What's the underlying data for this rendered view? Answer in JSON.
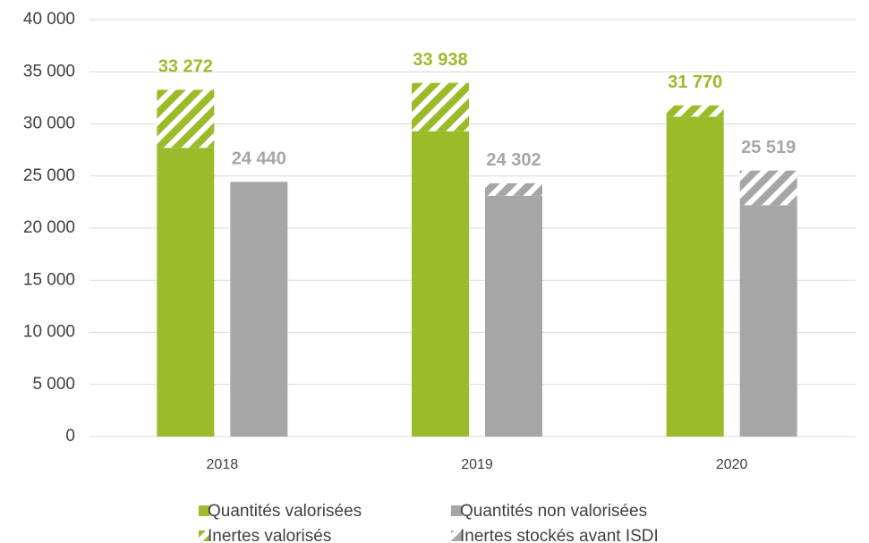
{
  "chart_data": {
    "type": "stacked_grouped_bar",
    "categories": [
      "2018",
      "2019",
      "2020"
    ],
    "series": [
      {
        "name": "Quantités valorisées",
        "color": "#9bbb2a",
        "stack": 0,
        "pattern": "solid",
        "values": [
          27700,
          29300,
          30700
        ]
      },
      {
        "name": "Quantités non valorisées",
        "color": "#a6a6a6",
        "stack": 1,
        "pattern": "solid",
        "values": [
          24440,
          23100,
          22200
        ]
      },
      {
        "name": "Inertes valorisés",
        "color": "#9bbb2a",
        "stack": 0,
        "pattern": "hatch",
        "values": [
          5572,
          4638,
          1070
        ]
      },
      {
        "name": "Inertes stockés avant ISDI",
        "color": "#a6a6a6",
        "stack": 1,
        "pattern": "hatch",
        "values": [
          0,
          1202,
          3319
        ]
      }
    ],
    "totals": [
      {
        "stack": 0,
        "color": "#9bbb2a",
        "values": [
          33272,
          33938,
          31770
        ],
        "value_labels": [
          "33 272",
          "33 938",
          "31 770"
        ]
      },
      {
        "stack": 1,
        "color": "#a6a6a6",
        "values": [
          24440,
          24302,
          25519
        ],
        "value_labels": [
          "24 440",
          "24 302",
          "25 519"
        ]
      }
    ],
    "ylim": [
      0,
      40000
    ],
    "yticks": [
      0,
      {
        "value": 5000,
        "label": "5 000"
      },
      {
        "value": 10000,
        "label": "10 000"
      },
      {
        "value": 15000,
        "label": "15 000"
      },
      {
        "value": 20000,
        "label": "20 000"
      },
      {
        "value": 25000,
        "label": "25 000"
      },
      {
        "value": 30000,
        "label": "30 000"
      },
      {
        "value": 35000,
        "label": "35 000"
      },
      {
        "value": 40000,
        "label": "40 000"
      }
    ],
    "grid": true
  }
}
